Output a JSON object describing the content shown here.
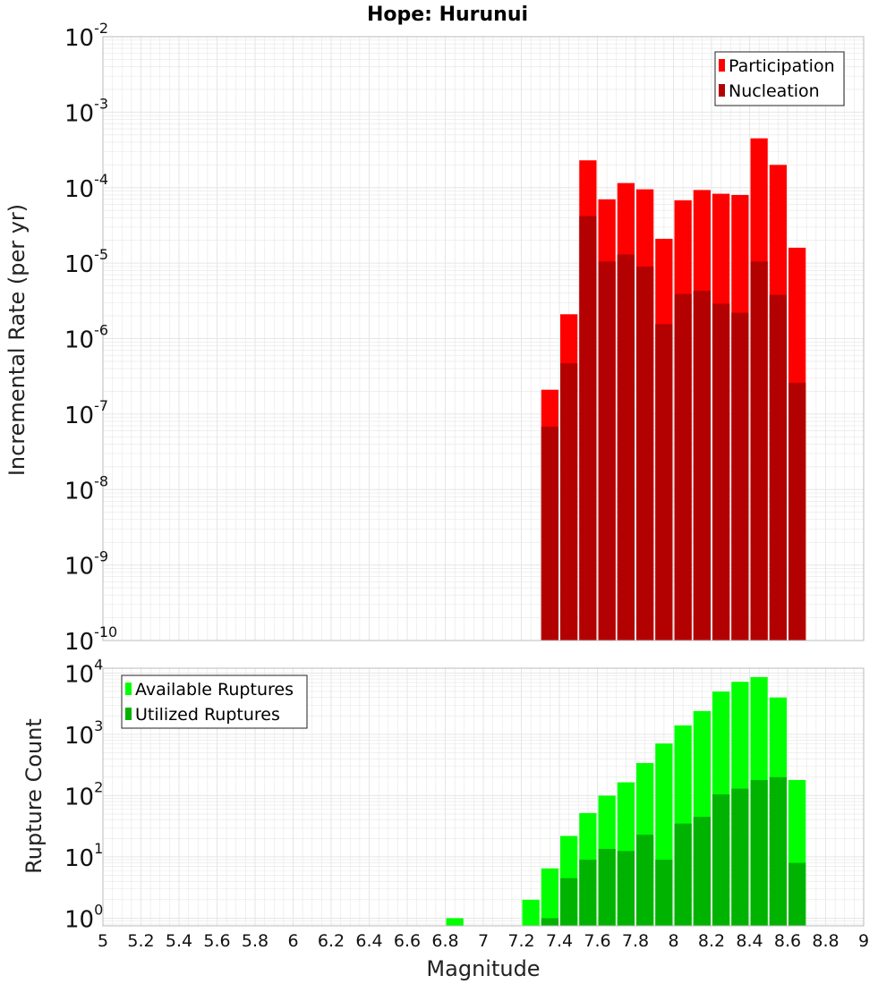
{
  "title": "Hope: Hurunui",
  "xlabel": "Magnitude",
  "xlim": [
    5,
    9
  ],
  "x_ticks": [
    "5",
    "5.2",
    "5.4",
    "5.6",
    "5.8",
    "6",
    "6.2",
    "6.4",
    "6.6",
    "6.8",
    "7",
    "7.2",
    "7.4",
    "7.6",
    "7.8",
    "8",
    "8.2",
    "8.4",
    "8.6",
    "8.8",
    "9"
  ],
  "colors": {
    "participation": "#ff0000",
    "nucleation": "#b30000",
    "available": "#00ff00",
    "utilized": "#00b300",
    "grid": "#e6e6e6",
    "frame": "#bbbbbb"
  },
  "chart_data": [
    {
      "type": "bar",
      "panel": "top",
      "ylabel": "Incremental Rate (per yr)",
      "yscale": "log",
      "ylim": [
        1e-10,
        0.01
      ],
      "y_ticks": [
        {
          "base": "10",
          "exp": "-10"
        },
        {
          "base": "10",
          "exp": "-9"
        },
        {
          "base": "10",
          "exp": "-8"
        },
        {
          "base": "10",
          "exp": "-7"
        },
        {
          "base": "10",
          "exp": "-6"
        },
        {
          "base": "10",
          "exp": "-5"
        },
        {
          "base": "10",
          "exp": "-4"
        },
        {
          "base": "10",
          "exp": "-3"
        },
        {
          "base": "10",
          "exp": "-2"
        }
      ],
      "legend": [
        "Participation",
        "Nucleation"
      ],
      "bin_width": 0.1,
      "x": [
        7.35,
        7.45,
        7.55,
        7.65,
        7.75,
        7.85,
        7.95,
        8.05,
        8.15,
        8.25,
        8.35,
        8.45,
        8.55,
        8.65
      ],
      "series": [
        {
          "name": "Participation",
          "values": [
            2.1e-07,
            2.1e-06,
            0.00023,
            7e-05,
            0.000115,
            9.5e-05,
            2.1e-05,
            6.8e-05,
            9.3e-05,
            8.3e-05,
            8e-05,
            0.00045,
            0.0002,
            1.6e-05
          ]
        },
        {
          "name": "Nucleation",
          "values": [
            6.8e-08,
            4.7e-07,
            4.2e-05,
            1.05e-05,
            1.3e-05,
            9e-06,
            1.55e-06,
            3.9e-06,
            4.3e-06,
            2.9e-06,
            2.2e-06,
            1.05e-05,
            3.8e-06,
            2.6e-07
          ]
        }
      ]
    },
    {
      "type": "bar",
      "panel": "bottom",
      "ylabel": "Rupture Count",
      "yscale": "log",
      "ylim": [
        0.75,
        12000
      ],
      "y_ticks": [
        {
          "base": "10",
          "exp": "0"
        },
        {
          "base": "10",
          "exp": "1"
        },
        {
          "base": "10",
          "exp": "2"
        },
        {
          "base": "10",
          "exp": "3"
        },
        {
          "base": "10",
          "exp": "4"
        }
      ],
      "legend": [
        "Available Ruptures",
        "Utilized Ruptures"
      ],
      "bin_width": 0.1,
      "x": [
        6.85,
        7.25,
        7.35,
        7.45,
        7.55,
        7.65,
        7.75,
        7.85,
        7.95,
        8.05,
        8.15,
        8.25,
        8.35,
        8.45,
        8.55,
        8.65
      ],
      "series": [
        {
          "name": "Available Ruptures",
          "values": [
            1,
            2,
            6.5,
            22,
            52,
            100,
            165,
            340,
            710,
            1400,
            2400,
            5000,
            7200,
            8600,
            4000,
            180
          ]
        },
        {
          "name": "Utilized Ruptures",
          "values": [
            0,
            0,
            1,
            4.5,
            9,
            13.5,
            12.5,
            23,
            9,
            35,
            45,
            105,
            130,
            180,
            200,
            8
          ]
        }
      ]
    }
  ]
}
